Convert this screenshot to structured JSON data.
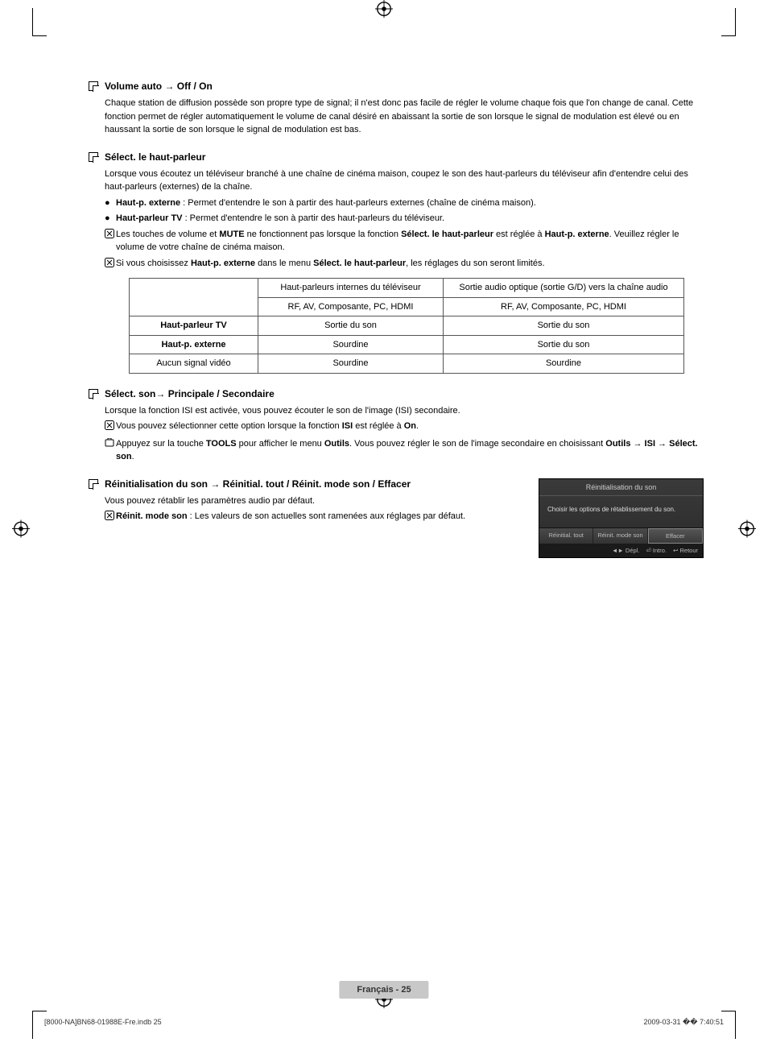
{
  "sections": {
    "volume_auto": {
      "title": "Volume auto → Off / On",
      "body": "Chaque station de diffusion possède son propre type de signal; il n'est donc pas facile de régler le volume chaque fois que l'on change de canal. Cette fonction permet de régler automatiquement le volume de canal désiré en abaissant la sortie de son lorsque le signal de modulation est élevé ou en haussant la sortie de son lorsque le signal de modulation est bas."
    },
    "select_hp": {
      "title": "Sélect. le haut-parleur",
      "body": "Lorsque vous écoutez un téléviseur branché à une chaîne de cinéma maison, coupez le son des haut-parleurs du téléviseur afin d'entendre celui des haut-parleurs (externes) de la chaîne.",
      "bullets": [
        {
          "bold": "Haut-p. externe",
          "text": " : Permet d'entendre le son à partir des haut-parleurs externes (chaîne de cinéma maison)."
        },
        {
          "bold": "Haut-parleur TV",
          "text": " : Permet d'entendre le son à partir des haut-parleurs du téléviseur."
        }
      ],
      "notes": [
        "Les touches de volume et <b>MUTE</b> ne fonctionnent pas lorsque la fonction <b>Sélect. le haut-parleur</b> est réglée à <b>Haut-p. externe</b>. Veuillez régler le volume de votre chaîne de cinéma maison.",
        "Si vous choisissez <b>Haut-p. externe</b> dans le menu <b>Sélect. le haut-parleur</b>, les réglages du son seront limités."
      ]
    },
    "select_son": {
      "title": "Sélect. son→ Principale / Secondaire",
      "body": "Lorsque la fonction ISI est activée, vous pouvez écouter le son de l'image (ISI) secondaire.",
      "note": "Vous pouvez sélectionner cette option lorsque la fonction <b>ISI</b> est réglée à <b>On</b>.",
      "tool": "Appuyez sur la touche <b>TOOLS</b> pour afficher le menu <b>Outils</b>. Vous pouvez régler le son de l'image secondaire en choisissant <b>Outils → ISI → Sélect. son</b>."
    },
    "reinit": {
      "title": "Réinitialisation du son → Réinitial. tout / Réinit. mode son / Effacer",
      "body": "Vous pouvez rétablir les paramètres audio par défaut.",
      "note": "<b>Réinit. mode son</b> : Les valeurs de son actuelles sont ramenées aux réglages par défaut."
    }
  },
  "table": {
    "head1": "Haut-parleurs internes du téléviseur",
    "head2": "Sortie audio optique (sortie G/D) vers la chaîne audio",
    "sub": "RF, AV, Composante, PC, HDMI",
    "rows": [
      {
        "label": "Haut-parleur TV",
        "c1": "Sortie du son",
        "c2": "Sortie du son",
        "bold": true
      },
      {
        "label": "Haut-p. externe",
        "c1": "Sourdine",
        "c2": "Sortie du son",
        "bold": true
      },
      {
        "label": "Aucun signal vidéo",
        "c1": "Sourdine",
        "c2": "Sourdine",
        "bold": false
      }
    ]
  },
  "osd": {
    "title": "Réinitialisation du son",
    "body": "Choisir les options de rétablissement du son.",
    "btn1": "Réinitial. tout",
    "btn2": "Réinit. mode son",
    "btn3": "Effacer",
    "f1": "◄► Dépl.",
    "f2": "⏎ Intro.",
    "f3": "↩ Retour"
  },
  "footer": {
    "page": "Français - 25"
  },
  "print": {
    "left": "[8000-NA]BN68-01988E-Fre.indb   25",
    "right": "2009-03-31   �� 7:40:51"
  }
}
